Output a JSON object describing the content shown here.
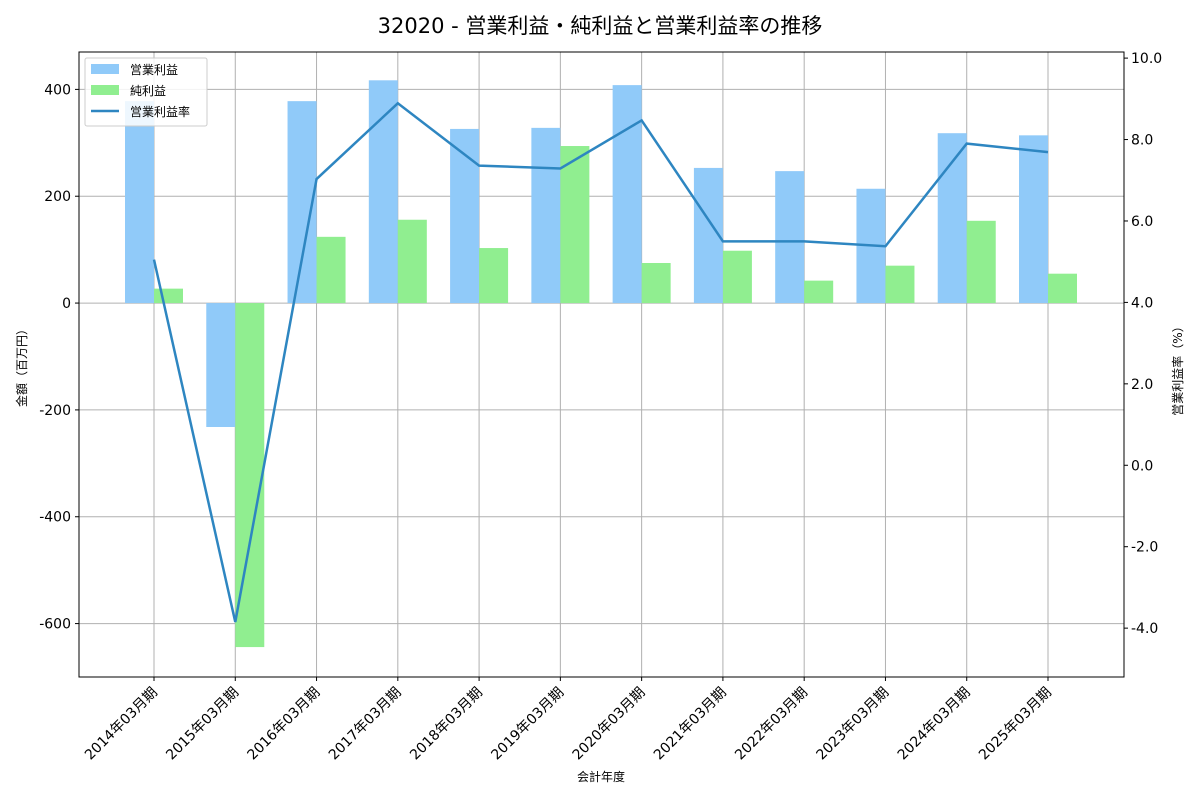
{
  "chart_data": {
    "type": "bar",
    "title": "32020 - 営業利益・純利益と営業利益率の推移",
    "xlabel": "会計年度",
    "ylabel": "金額（百万円）",
    "y2label": "営業利益率（%）",
    "ylim": [
      -700,
      470
    ],
    "y2lim": [
      -5.2,
      10.15
    ],
    "yticks": [
      -600,
      -400,
      -200,
      0,
      200,
      400
    ],
    "y2ticks": [
      -4.0,
      -2.0,
      0.0,
      2.0,
      4.0,
      6.0,
      8.0,
      10.0
    ],
    "grid": true,
    "legend_position": "upper left",
    "categories": [
      "2014年03月期",
      "2015年03月期",
      "2016年03月期",
      "2017年03月期",
      "2018年03月期",
      "2019年03月期",
      "2020年03月期",
      "2021年03月期",
      "2022年03月期",
      "2023年03月期",
      "2024年03月期",
      "2025年03月期"
    ],
    "series": [
      {
        "name": "営業利益",
        "type": "bar",
        "axis": "left",
        "color": "#90caf9",
        "values": [
          378,
          -232,
          378,
          417,
          326,
          328,
          408,
          253,
          247,
          214,
          318,
          314
        ]
      },
      {
        "name": "純利益",
        "type": "bar",
        "axis": "left",
        "color": "#90ee90",
        "values": [
          27,
          -644,
          124,
          156,
          103,
          294,
          75,
          98,
          42,
          70,
          154,
          55
        ]
      },
      {
        "name": "営業利益率",
        "type": "line",
        "axis": "right",
        "color": "#2e86c1",
        "values": [
          5.05,
          -3.85,
          7.03,
          8.89,
          7.36,
          7.29,
          8.47,
          5.5,
          5.5,
          5.38,
          7.9,
          7.69
        ]
      }
    ]
  },
  "legend": {
    "items": [
      "営業利益",
      "純利益",
      "営業利益率"
    ]
  }
}
